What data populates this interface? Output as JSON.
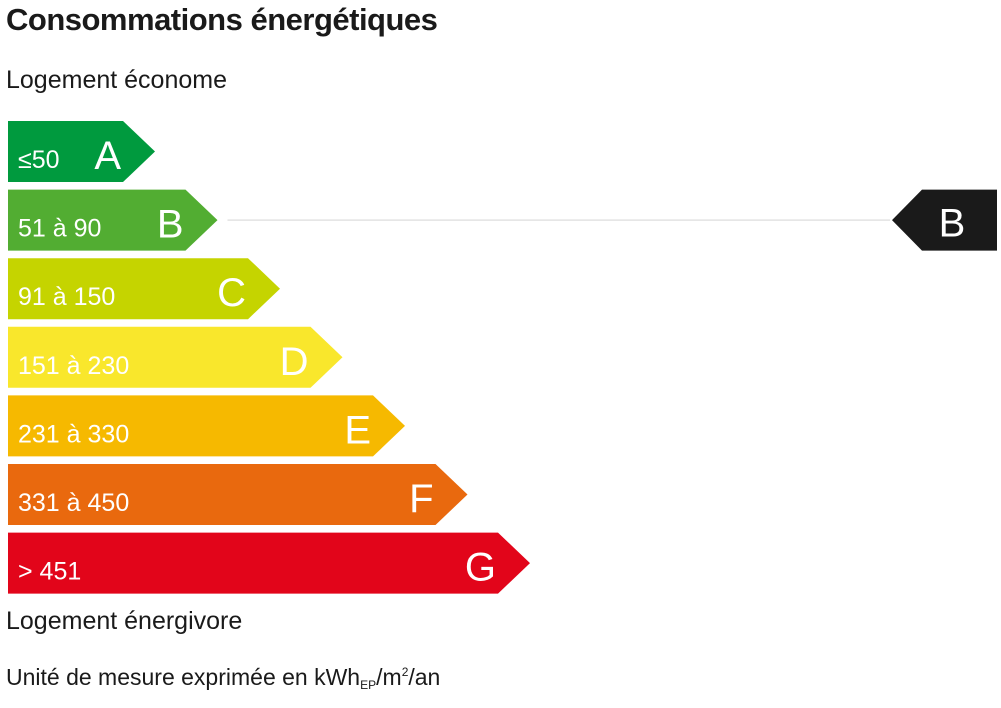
{
  "title": "Consommations énergétiques",
  "label_top": "Logement économe",
  "label_bottom": "Logement énergivore",
  "unit": {
    "prefix": "Unité de mesure exprimée en kWh",
    "sub": "EP",
    "mid": "/m",
    "sup": "2",
    "suffix": "/an"
  },
  "chart_data": {
    "type": "bar",
    "categories": [
      "A",
      "B",
      "C",
      "D",
      "E",
      "F",
      "G"
    ],
    "ranges": [
      "≤50",
      "51 à 90",
      "91 à 150",
      "151 à 230",
      "231 à 330",
      "331 à 450",
      "> 451"
    ],
    "colors": [
      "#009a3e",
      "#52ad32",
      "#c5d400",
      "#f9e72c",
      "#f6b900",
      "#e9690e",
      "#e2051a"
    ],
    "rating": "B",
    "rating_color": "#1a1a1a",
    "connector_color": "#e2e2e2",
    "legend": "none",
    "grid": false
  }
}
